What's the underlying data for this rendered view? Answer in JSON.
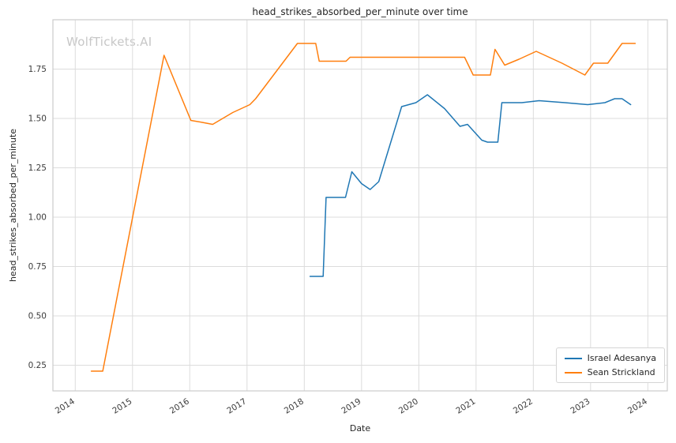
{
  "chart_data": {
    "type": "line",
    "title": "head_strikes_absorbed_per_minute over time",
    "xlabel": "Date",
    "ylabel": "head_strikes_absorbed_per_minute",
    "watermark": "WolfTickets.AI",
    "grid": true,
    "legend_position": "lower right",
    "xlim": [
      2013.61,
      2024.34
    ],
    "ylim": [
      0.12,
      2.0
    ],
    "x_ticks": [
      2014,
      2015,
      2016,
      2017,
      2018,
      2019,
      2020,
      2021,
      2022,
      2023,
      2024
    ],
    "y_ticks": [
      0.25,
      0.5,
      0.75,
      1.0,
      1.25,
      1.5,
      1.75
    ],
    "style": {
      "grid_color": "#dcdcdc",
      "spine_color": "#cccccc",
      "tick_label_color": "#3b3b3b",
      "line_width": 1.5
    },
    "series": [
      {
        "name": "Israel Adesanya",
        "color": "#1f77b4",
        "points": [
          [
            2018.1,
            0.7
          ],
          [
            2018.33,
            0.7
          ],
          [
            2018.38,
            1.1
          ],
          [
            2018.72,
            1.1
          ],
          [
            2018.83,
            1.23
          ],
          [
            2019.0,
            1.17
          ],
          [
            2019.15,
            1.14
          ],
          [
            2019.3,
            1.18
          ],
          [
            2019.7,
            1.56
          ],
          [
            2019.95,
            1.58
          ],
          [
            2020.15,
            1.62
          ],
          [
            2020.45,
            1.55
          ],
          [
            2020.72,
            1.46
          ],
          [
            2020.85,
            1.47
          ],
          [
            2021.1,
            1.39
          ],
          [
            2021.2,
            1.38
          ],
          [
            2021.38,
            1.38
          ],
          [
            2021.45,
            1.58
          ],
          [
            2021.8,
            1.58
          ],
          [
            2022.1,
            1.59
          ],
          [
            2022.55,
            1.58
          ],
          [
            2022.95,
            1.57
          ],
          [
            2023.25,
            1.58
          ],
          [
            2023.42,
            1.6
          ],
          [
            2023.55,
            1.6
          ],
          [
            2023.7,
            1.57
          ]
        ]
      },
      {
        "name": "Sean Strickland",
        "color": "#ff7f0e",
        "points": [
          [
            2014.28,
            0.22
          ],
          [
            2014.48,
            0.22
          ],
          [
            2015.55,
            1.82
          ],
          [
            2016.02,
            1.49
          ],
          [
            2016.22,
            1.48
          ],
          [
            2016.4,
            1.47
          ],
          [
            2016.75,
            1.53
          ],
          [
            2017.05,
            1.57
          ],
          [
            2017.15,
            1.6
          ],
          [
            2017.88,
            1.88
          ],
          [
            2018.2,
            1.88
          ],
          [
            2018.26,
            1.79
          ],
          [
            2018.73,
            1.79
          ],
          [
            2018.8,
            1.81
          ],
          [
            2019.1,
            1.81
          ],
          [
            2020.8,
            1.81
          ],
          [
            2020.95,
            1.72
          ],
          [
            2021.25,
            1.72
          ],
          [
            2021.33,
            1.85
          ],
          [
            2021.5,
            1.77
          ],
          [
            2021.75,
            1.8
          ],
          [
            2022.05,
            1.84
          ],
          [
            2022.5,
            1.78
          ],
          [
            2022.9,
            1.72
          ],
          [
            2023.05,
            1.78
          ],
          [
            2023.3,
            1.78
          ],
          [
            2023.55,
            1.88
          ],
          [
            2023.78,
            1.88
          ]
        ]
      }
    ]
  }
}
